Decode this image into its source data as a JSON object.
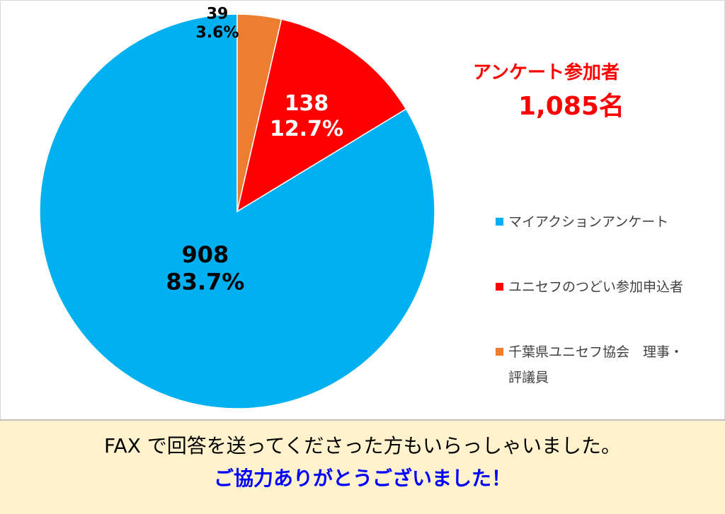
{
  "chart_data": {
    "type": "pie",
    "start_angle_deg": 0,
    "direction": "counterclockwise",
    "slices": [
      {
        "name": "マイアクションアンケート",
        "value": 908,
        "percent_label": "83.7%",
        "color": "#00b0f0"
      },
      {
        "name": "ユニセフのつどい参加申込者",
        "value": 138,
        "percent_label": "12.7%",
        "color": "#ff0000"
      },
      {
        "name": "千葉県ユニセフ協会　理事・評議員",
        "value": 39,
        "percent_label": "3.6%",
        "color": "#ed7d31"
      }
    ],
    "legend_position": "right"
  },
  "participants": {
    "title": "アンケート参加者",
    "count": "1,085名"
  },
  "legend": {
    "items": [
      {
        "line1": "マイアクションアンケート",
        "line2": "",
        "color": "#00b0f0"
      },
      {
        "line1": "ユニセフのつどい参加申込者",
        "line2": "",
        "color": "#ff0000"
      },
      {
        "line1": "千葉県ユニセフ協会　理事・",
        "line2": "評議員",
        "color": "#ed7d31"
      }
    ]
  },
  "footer": {
    "line1": "FAX で回答を送ってくださった方もいらっしゃいました。",
    "line2": "ご協力ありがとうございました！"
  }
}
